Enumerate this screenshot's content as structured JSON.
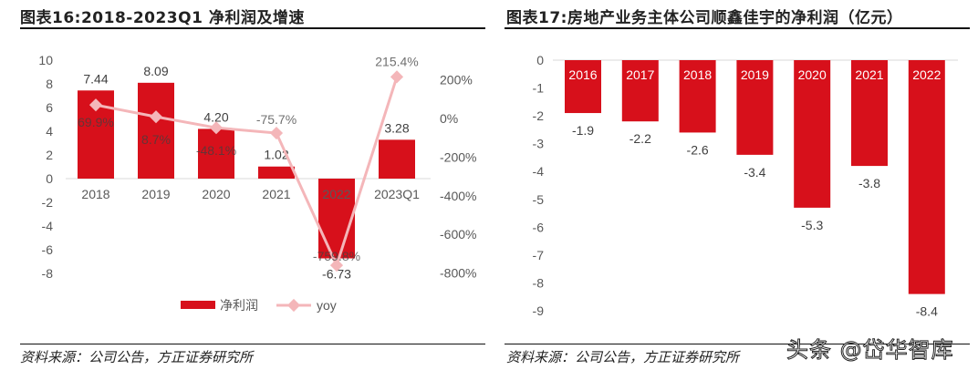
{
  "left": {
    "title": "图表16:2018-2023Q1 净利润及增速",
    "source": "资料来源：公司公告，方正证券研究所"
  },
  "right": {
    "title": "图表17:房地产业务主体公司顺鑫佳宇的净利润（亿元）",
    "source": "资料来源：公司公告，方正证券研究所"
  },
  "watermark": "头条 @岱华智库",
  "chart_data": [
    {
      "type": "bar+line",
      "title": "图表16:2018-2023Q1 净利润及增速",
      "categories": [
        "2018",
        "2019",
        "2020",
        "2021",
        "2022",
        "2023Q1"
      ],
      "series": [
        {
          "name": "净利润",
          "type": "bar",
          "axis": "left",
          "values": [
            7.44,
            8.09,
            4.2,
            1.02,
            -6.73,
            3.28
          ],
          "labels": [
            "7.44",
            "8.09",
            "4.20",
            "1.02",
            "-6.73",
            "3.28"
          ],
          "color": "#d7101b"
        },
        {
          "name": "yoy",
          "type": "line",
          "axis": "right",
          "values": [
            69.9,
            8.7,
            -48.1,
            -75.7,
            -759.8,
            215.4
          ],
          "labels": [
            "69.9%",
            "8.7%",
            "-48.1%",
            "-75.7%",
            "-759.8%",
            "215.4%"
          ],
          "color": "#f4b6b9"
        }
      ],
      "yleft": {
        "range": [
          -8,
          10
        ],
        "ticks": [
          "10",
          "8",
          "6",
          "4",
          "2",
          "0",
          "-2",
          "-4",
          "-6",
          "-8"
        ]
      },
      "yright": {
        "range": [
          -800,
          200
        ],
        "ticks": [
          "200%",
          "0%",
          "-200%",
          "-400%",
          "-600%",
          "-800%"
        ]
      },
      "legend": "bottom",
      "grid": false
    },
    {
      "type": "bar",
      "title": "图表17:房地产业务主体公司顺鑫佳宇的净利润（亿元）",
      "categories": [
        "2016",
        "2017",
        "2018",
        "2019",
        "2020",
        "2021",
        "2022"
      ],
      "values": [
        -1.9,
        -2.2,
        -2.6,
        -3.4,
        -5.3,
        -3.8,
        -8.4
      ],
      "labels": [
        "-1.9",
        "-2.2",
        "-2.6",
        "-3.4",
        "-5.3",
        "-3.8",
        "-8.4"
      ],
      "ylim": [
        -9,
        0
      ],
      "yticks": [
        "0",
        "-1",
        "-2",
        "-3",
        "-4",
        "-5",
        "-6",
        "-7",
        "-8",
        "-9"
      ],
      "color": "#d7101b",
      "grid": false
    }
  ]
}
